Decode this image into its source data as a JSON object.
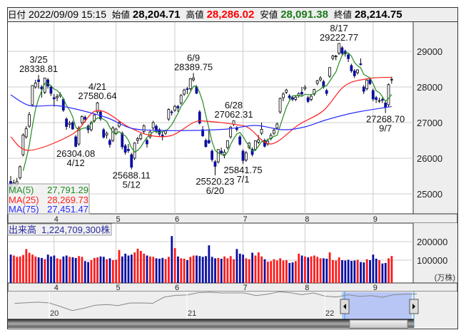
{
  "header": {
    "date_label": "日付",
    "date_value": "2022/09/09 15:15",
    "open_label": "始値",
    "open_value": "28,204.71",
    "high_label": "高値",
    "high_value": "28,286.02",
    "low_label": "安値",
    "low_value": "28,091.38",
    "close_label": "終値",
    "close_value": "28,214.75"
  },
  "colors": {
    "up_body": "#ffffff",
    "down_body": "#0a0ea0",
    "vol_up": "#ff1a1a",
    "vol_down": "#0a0ea0",
    "ma5": "#228b22",
    "ma25": "#ff2020",
    "ma75": "#2a2aff",
    "high_text": "#ff0000",
    "low_text": "#1a7a1a"
  },
  "legend": {
    "ma5_label": "MA(5)",
    "ma5_value": "27,791.29",
    "ma25_label": "MA(25)",
    "ma25_value": "28,269.73",
    "ma75_label": "MA(75)",
    "ma75_value": "27,451.47"
  },
  "volume_legend": {
    "label": "出来高",
    "value": "1,224,709,300株"
  },
  "volume_unit": "(万株)",
  "chart_data": {
    "type": "candlestick",
    "price_axis": {
      "ticks": [
        "29000",
        "28000",
        "27000",
        "26000",
        "25000"
      ],
      "ylim": [
        24500,
        29800
      ]
    },
    "volume_axis": {
      "ticks": [
        "200000",
        "100000"
      ],
      "ylim": [
        0,
        270000
      ]
    },
    "month_ticks": [
      {
        "label": "4",
        "date": "4/1"
      },
      {
        "label": "5",
        "date": "5/2"
      },
      {
        "label": "6",
        "date": "6/1"
      },
      {
        "label": "7",
        "date": "7/1"
      },
      {
        "label": "8",
        "date": "8/1"
      },
      {
        "label": "9",
        "date": "9/1"
      }
    ],
    "candles": [
      [
        "3/11",
        25350,
        25500,
        25150,
        25162,
        130000
      ],
      [
        "3/14",
        25200,
        25400,
        25050,
        25307,
        125000
      ],
      [
        "3/15",
        25250,
        25450,
        25100,
        25346,
        118000
      ],
      [
        "3/16",
        25450,
        25800,
        25400,
        25762,
        120000
      ],
      [
        "3/17",
        26100,
        26700,
        26050,
        26652,
        128000
      ],
      [
        "3/18",
        26600,
        26900,
        26550,
        26827,
        160000
      ],
      [
        "3/22",
        26900,
        27300,
        26850,
        27224,
        140000
      ],
      [
        "3/23",
        27500,
        28050,
        27450,
        28040,
        130000
      ],
      [
        "3/24",
        28000,
        28200,
        27950,
        28110,
        120000
      ],
      [
        "3/25",
        28200,
        28338.81,
        27950,
        28149,
        115000
      ],
      [
        "3/28",
        28000,
        28050,
        27700,
        27943,
        112000
      ],
      [
        "3/29",
        27850,
        28260,
        27800,
        28252,
        105000
      ],
      [
        "3/30",
        28200,
        28250,
        27950,
        28027,
        130000
      ],
      [
        "3/31",
        28000,
        28050,
        27750,
        27821,
        120000
      ],
      [
        "4/1",
        27700,
        27800,
        27450,
        27665,
        125000
      ],
      [
        "4/4",
        27700,
        27800,
        27600,
        27736,
        110000
      ],
      [
        "4/5",
        27750,
        27850,
        27700,
        27787,
        105000
      ],
      [
        "4/6",
        27650,
        27700,
        27300,
        27350,
        120000
      ],
      [
        "4/7",
        27100,
        27150,
        26800,
        26888,
        125000
      ],
      [
        "4/8",
        26950,
        27050,
        26850,
        26985,
        118000
      ],
      [
        "4/11",
        27000,
        27050,
        26800,
        26821,
        116000
      ],
      [
        "4/12",
        26600,
        26650,
        26304.08,
        26334,
        112000
      ],
      [
        "4/13",
        26400,
        26900,
        26350,
        26843,
        122000
      ],
      [
        "4/14",
        27000,
        27200,
        26950,
        27172,
        118000
      ],
      [
        "4/15",
        27150,
        27200,
        27000,
        27093,
        95000
      ],
      [
        "4/18",
        26900,
        26950,
        26700,
        26799,
        90000
      ],
      [
        "4/19",
        26800,
        27050,
        26750,
        26985,
        100000
      ],
      [
        "4/20",
        27050,
        27250,
        27000,
        27217,
        112000
      ],
      [
        "4/21",
        27300,
        27580.64,
        27250,
        27553,
        115000
      ],
      [
        "4/22",
        27300,
        27350,
        27050,
        27105,
        120000
      ],
      [
        "4/25",
        26800,
        26850,
        26550,
        26590,
        118000
      ],
      [
        "4/26",
        26650,
        26750,
        26550,
        26700,
        105000
      ],
      [
        "4/27",
        26500,
        26550,
        26300,
        26386,
        110000
      ],
      [
        "4/28",
        26500,
        26900,
        26450,
        26847,
        100000
      ],
      [
        "5/2",
        26700,
        26850,
        26650,
        26818,
        102000
      ],
      [
        "5/6",
        26900,
        27050,
        26850,
        27003,
        155000
      ],
      [
        "5/9",
        26700,
        26750,
        26250,
        26319,
        120000
      ],
      [
        "5/10",
        26350,
        26400,
        26100,
        26167,
        135000
      ],
      [
        "5/11",
        26250,
        26400,
        26150,
        26213,
        125000
      ],
      [
        "5/12",
        26100,
        26150,
        25688.11,
        25748,
        130000
      ],
      [
        "5/13",
        26000,
        26450,
        25950,
        26427,
        142000
      ],
      [
        "5/16",
        26500,
        26600,
        26400,
        26547,
        162000
      ],
      [
        "5/17",
        26550,
        26700,
        26500,
        26659,
        150000
      ],
      [
        "5/18",
        26750,
        26950,
        26700,
        26911,
        135000
      ],
      [
        "5/19",
        26500,
        26550,
        26300,
        26402,
        125000
      ],
      [
        "5/20",
        26600,
        26800,
        26550,
        26739,
        120000
      ],
      [
        "5/23",
        26850,
        27050,
        26800,
        27001,
        118000
      ],
      [
        "5/24",
        26900,
        26950,
        26700,
        26748,
        110000
      ],
      [
        "5/25",
        26800,
        26850,
        26600,
        26677,
        108000
      ],
      [
        "5/26",
        26650,
        26750,
        26500,
        26604,
        112000
      ],
      [
        "5/27",
        26700,
        26800,
        26650,
        26781,
        106000
      ],
      [
        "5/30",
        27100,
        27400,
        27050,
        27369,
        118000
      ],
      [
        "5/31",
        27300,
        27350,
        27200,
        27279,
        230000
      ],
      [
        "6/1",
        27350,
        27500,
        27300,
        27457,
        165000
      ],
      [
        "6/2",
        27450,
        27500,
        27300,
        27413,
        120000
      ],
      [
        "6/3",
        27550,
        27800,
        27500,
        27761,
        110000
      ],
      [
        "6/6",
        27800,
        27950,
        27750,
        27915,
        108000
      ],
      [
        "6/7",
        27950,
        28000,
        27800,
        27943,
        100000
      ],
      [
        "6/8",
        27950,
        28250,
        27900,
        28234,
        118000
      ],
      [
        "6/9",
        28200,
        28389.75,
        28150,
        28246,
        125000
      ],
      [
        "6/10",
        28000,
        28050,
        27800,
        27824,
        125000
      ],
      [
        "6/13",
        27300,
        27350,
        26950,
        26987,
        122000
      ],
      [
        "6/14",
        26800,
        26900,
        26600,
        26629,
        118000
      ],
      [
        "6/15",
        26500,
        26550,
        26300,
        26326,
        122000
      ],
      [
        "6/16",
        26500,
        26800,
        26400,
        26431,
        180000
      ],
      [
        "6/17",
        26200,
        26250,
        25900,
        25963,
        118000
      ],
      [
        "6/20",
        25900,
        25950,
        25520.23,
        25771,
        110000
      ],
      [
        "6/21",
        25900,
        26250,
        25850,
        26246,
        112000
      ],
      [
        "6/22",
        26200,
        26300,
        26100,
        26149,
        108000
      ],
      [
        "6/23",
        26100,
        26250,
        26000,
        26171,
        120000
      ],
      [
        "6/24",
        26300,
        26500,
        26250,
        26491,
        110000
      ],
      [
        "6/27",
        26600,
        26900,
        26550,
        26871,
        122000
      ],
      [
        "6/28",
        26950,
        27062.31,
        26900,
        27049,
        105000
      ],
      [
        "6/29",
        26850,
        26900,
        26750,
        26804,
        160000
      ],
      [
        "6/30",
        26600,
        26650,
        26350,
        26393,
        135000
      ],
      [
        "7/1",
        26200,
        26250,
        25841.75,
        25935,
        130000
      ],
      [
        "7/4",
        25950,
        26200,
        25900,
        26153,
        110000
      ],
      [
        "7/5",
        26300,
        26450,
        26250,
        26423,
        105000
      ],
      [
        "7/6",
        26250,
        26300,
        26050,
        26107,
        140000
      ],
      [
        "7/7",
        26250,
        26500,
        26200,
        26490,
        125000
      ],
      [
        "7/8",
        26450,
        26650,
        26400,
        26517,
        142000
      ],
      [
        "7/11",
        26700,
        27000,
        26650,
        26812,
        120000
      ],
      [
        "7/12",
        26500,
        26550,
        26300,
        26336,
        105000
      ],
      [
        "7/13",
        26400,
        26550,
        26350,
        26478,
        92000
      ],
      [
        "7/14",
        26550,
        26700,
        26500,
        26643,
        95000
      ],
      [
        "7/15",
        26700,
        26850,
        26650,
        26788,
        105000
      ],
      [
        "7/19",
        26850,
        27000,
        26800,
        26961,
        98000
      ],
      [
        "7/20",
        27300,
        27700,
        27250,
        27680,
        110000
      ],
      [
        "7/21",
        27700,
        27850,
        27600,
        27803,
        98000
      ],
      [
        "7/22",
        27850,
        27950,
        27800,
        27914,
        100000
      ],
      [
        "7/25",
        27750,
        27800,
        27650,
        27699,
        85000
      ],
      [
        "7/26",
        27700,
        27750,
        27600,
        27655,
        88000
      ],
      [
        "7/27",
        27650,
        27750,
        27600,
        27715,
        95000
      ],
      [
        "7/28",
        27750,
        27850,
        27700,
        27815,
        135000
      ],
      [
        "7/29",
        27850,
        28000,
        27750,
        27801,
        125000
      ],
      [
        "8/1",
        27950,
        28050,
        27900,
        27993,
        120000
      ],
      [
        "8/2",
        27700,
        27750,
        27550,
        27594,
        115000
      ],
      [
        "8/3",
        27650,
        27800,
        27600,
        27741,
        120000
      ],
      [
        "8/4",
        27800,
        27950,
        27750,
        27932,
        125000
      ],
      [
        "8/5",
        28100,
        28200,
        28050,
        28175,
        118000
      ],
      [
        "8/8",
        28200,
        28300,
        28150,
        28249,
        110000
      ],
      [
        "8/9",
        28150,
        28200,
        27950,
        27999,
        110000
      ],
      [
        "8/10",
        27900,
        27950,
        27750,
        27819,
        108000
      ],
      [
        "8/12",
        28300,
        28550,
        28250,
        28546,
        142000
      ],
      [
        "8/15",
        28800,
        28900,
        28750,
        28871,
        100000
      ],
      [
        "8/16",
        28850,
        28900,
        28750,
        28868,
        98000
      ],
      [
        "8/17",
        28950,
        29222.77,
        28900,
        29222,
        115000
      ],
      [
        "8/18",
        29100,
        29150,
        28900,
        28942,
        100000
      ],
      [
        "8/19",
        29000,
        29050,
        28850,
        28930,
        98000
      ],
      [
        "8/22",
        28900,
        28950,
        28700,
        28794,
        102000
      ],
      [
        "8/23",
        28600,
        28650,
        28400,
        28452,
        96000
      ],
      [
        "8/24",
        28450,
        28500,
        28250,
        28313,
        98000
      ],
      [
        "8/25",
        28400,
        28500,
        28350,
        28479,
        102000
      ],
      [
        "8/26",
        28650,
        28800,
        28600,
        28641,
        90000
      ],
      [
        "8/29",
        28000,
        28050,
        27800,
        27878,
        88000
      ],
      [
        "8/30",
        27950,
        28200,
        27900,
        28195,
        105000
      ],
      [
        "8/31",
        28200,
        28250,
        28050,
        28091,
        100000
      ],
      [
        "9/1",
        27900,
        27950,
        27600,
        27661,
        130000
      ],
      [
        "9/2",
        27700,
        27750,
        27550,
        27650,
        108000
      ],
      [
        "9/5",
        27600,
        27700,
        27550,
        27619,
        100000
      ],
      [
        "9/6",
        27650,
        27700,
        27550,
        27626,
        82000
      ],
      [
        "9/7",
        27550,
        27600,
        27268.7,
        27430,
        85000
      ],
      [
        "9/8",
        27500,
        28100,
        27450,
        28065,
        110000
      ],
      [
        "9/9",
        28204.71,
        28286.02,
        28091.38,
        28214.75,
        122471
      ]
    ],
    "ma25": [
      [
        "3/11",
        26600
      ],
      [
        "3/22",
        26220
      ],
      [
        "4/11",
        26680
      ],
      [
        "4/21",
        27340
      ],
      [
        "5/11",
        26880
      ],
      [
        "5/20",
        26640
      ],
      [
        "5/31",
        26640
      ],
      [
        "6/9",
        27000
      ],
      [
        "6/15",
        27040
      ],
      [
        "6/29",
        26940
      ],
      [
        "7/5",
        26840
      ],
      [
        "7/14",
        26400
      ],
      [
        "7/28",
        26940
      ],
      [
        "8/9",
        27340
      ],
      [
        "8/19",
        28040
      ],
      [
        "8/31",
        28240
      ],
      [
        "9/9",
        28269.73
      ]
    ],
    "ma75": [
      [
        "3/11",
        27780
      ],
      [
        "3/22",
        27480
      ],
      [
        "4/1",
        27480
      ],
      [
        "4/11",
        27400
      ],
      [
        "4/26",
        27140
      ],
      [
        "5/12",
        26840
      ],
      [
        "5/26",
        26780
      ],
      [
        "6/9",
        26780
      ],
      [
        "6/24",
        26820
      ],
      [
        "7/7",
        26920
      ],
      [
        "7/21",
        26800
      ],
      [
        "8/1",
        26880
      ],
      [
        "8/10",
        27080
      ],
      [
        "8/24",
        27280
      ],
      [
        "9/9",
        27451.47
      ]
    ],
    "annotations": [
      {
        "date": "3/25",
        "value": "28338.81",
        "side": "high"
      },
      {
        "date": "4/12",
        "value": "26304.08",
        "side": "low"
      },
      {
        "date": "4/21",
        "value": "27580.64",
        "side": "high"
      },
      {
        "date": "5/12",
        "value": "25688.11",
        "side": "low"
      },
      {
        "date": "6/9",
        "value": "28389.75",
        "side": "high"
      },
      {
        "date": "6/20",
        "value": "25520.23",
        "side": "low"
      },
      {
        "date": "6/28",
        "value": "27062.31",
        "side": "high"
      },
      {
        "date": "7/1",
        "value": "25841.75",
        "side": "low"
      },
      {
        "date": "8/17",
        "value": "29222.77",
        "side": "high"
      },
      {
        "date": "9/7",
        "value": "27268.70",
        "side": "low"
      }
    ]
  },
  "navigator": {
    "year_labels": [
      "20",
      "21",
      "22"
    ],
    "series": [
      22927,
      23293,
      23656,
      23205,
      21143,
      18917,
      20193,
      21877,
      22288,
      21710,
      23139,
      23185,
      22977,
      26433,
      27444,
      27663,
      28966,
      29178,
      28812,
      28860,
      28791,
      27283,
      28089,
      29452,
      28892,
      27821,
      28791,
      27001,
      26526,
      27821,
      26847,
      27279,
      26393,
      27801,
      28091,
      28214
    ]
  }
}
